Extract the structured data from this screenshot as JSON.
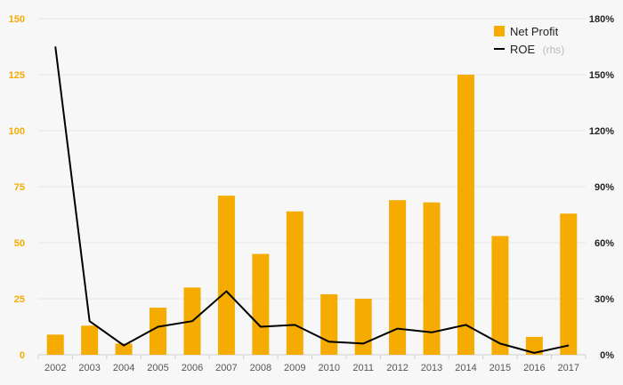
{
  "chart_data": {
    "type": "bar",
    "categories": [
      "2002",
      "2003",
      "2004",
      "2005",
      "2006",
      "2007",
      "2008",
      "2009",
      "2010",
      "2011",
      "2012",
      "2013",
      "2014",
      "2015",
      "2016",
      "2017"
    ],
    "series": [
      {
        "name": "Net Profit",
        "type": "bar",
        "axis": "left",
        "color": "#f5ab00",
        "values": [
          9,
          13,
          5,
          21,
          30,
          71,
          45,
          64,
          27,
          25,
          69,
          68,
          125,
          53,
          8,
          63
        ]
      },
      {
        "name": "ROE",
        "name_suffix": "(rhs)",
        "type": "line",
        "axis": "right",
        "color": "#000000",
        "values": [
          165,
          18,
          5,
          15,
          18,
          34,
          15,
          16,
          7,
          6,
          14,
          12,
          16,
          6,
          1,
          5
        ]
      }
    ],
    "y_left": {
      "ticks": [
        "0",
        "25",
        "50",
        "75",
        "100",
        "125",
        "150"
      ],
      "ylim": [
        0,
        150
      ],
      "label_color": "#f5ab00"
    },
    "y_right": {
      "ticks": [
        "0%",
        "30%",
        "60%",
        "90%",
        "120%",
        "150%",
        "180%"
      ],
      "ylim": [
        0,
        180
      ]
    },
    "grid": true,
    "legend_position": "top-right"
  }
}
